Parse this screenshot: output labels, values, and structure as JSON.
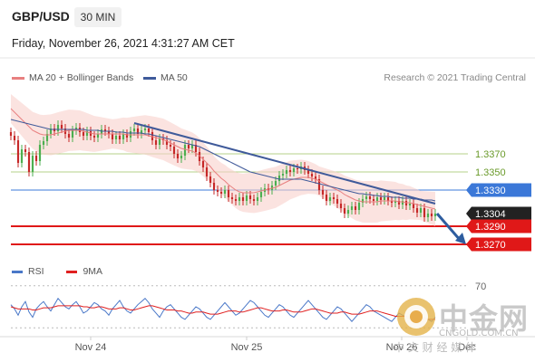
{
  "header": {
    "symbol": "GBP/USD",
    "timeframe": "30 MIN",
    "datetime": "Friday, November 26, 2021 4:31:27 AM CET"
  },
  "legend": {
    "ma20_bb": "MA 20 + Bollinger Bands",
    "ma50": "MA 50",
    "credit": "Research © 2021 Trading Central"
  },
  "rsi_legend": {
    "rsi": "RSI",
    "ma9": "9MA"
  },
  "colors": {
    "ma20": "#e88080",
    "ma50": "#3f5a9a",
    "support": "#e01818",
    "pivot_line": "#3b78d8",
    "resistance_line": "#b5d08a",
    "arrow": "#2e5d9f",
    "up_candle": "#4caf50",
    "down_candle": "#c62828",
    "rsi": "#4a78c8",
    "rsi_ma": "#e02020"
  },
  "chart_data": [
    {
      "type": "candlestick",
      "title": "GBP/USD",
      "x_tick_labels": [
        "Nov 24",
        "Nov 25",
        "Nov 26",
        "Dec"
      ],
      "ylim": [
        1.3258,
        1.3442
      ],
      "levels": [
        {
          "label": "1.3370",
          "value": 1.337,
          "kind": "resistance"
        },
        {
          "label": "1.3350",
          "value": 1.335,
          "kind": "resistance"
        },
        {
          "label": "1.3330",
          "value": 1.333,
          "kind": "pivot"
        },
        {
          "label": "1.3304",
          "value": 1.3304,
          "kind": "last"
        },
        {
          "label": "1.3290",
          "value": 1.329,
          "kind": "support"
        },
        {
          "label": "1.3270",
          "value": 1.327,
          "kind": "support"
        }
      ],
      "close": [
        1.339,
        1.3385,
        1.336,
        1.3375,
        1.3372,
        1.335,
        1.3368,
        1.3362,
        1.338,
        1.3384,
        1.3392,
        1.3398,
        1.3395,
        1.3402,
        1.3398,
        1.3392,
        1.3388,
        1.3396,
        1.3399,
        1.3394,
        1.339,
        1.3395,
        1.339,
        1.3388,
        1.3392,
        1.3397,
        1.3395,
        1.3392,
        1.3386,
        1.339,
        1.3386,
        1.3392,
        1.3388,
        1.3395,
        1.3398,
        1.3392,
        1.3396,
        1.3398,
        1.3394,
        1.3385,
        1.338,
        1.3387,
        1.3385,
        1.338,
        1.3378,
        1.337,
        1.3365,
        1.3368,
        1.338,
        1.3376,
        1.338,
        1.3372,
        1.3362,
        1.3355,
        1.3345,
        1.3338,
        1.333,
        1.3328,
        1.3326,
        1.333,
        1.3322,
        1.332,
        1.3318,
        1.3322,
        1.3318,
        1.3324,
        1.332,
        1.3318,
        1.3322,
        1.3328,
        1.3332,
        1.333,
        1.3335,
        1.334,
        1.3346,
        1.3348,
        1.3352,
        1.335,
        1.3354,
        1.3353,
        1.3356,
        1.3352,
        1.3348,
        1.3345,
        1.3342,
        1.333,
        1.3325,
        1.3318,
        1.3322,
        1.332,
        1.3315,
        1.331,
        1.3304,
        1.3308,
        1.3312,
        1.3308,
        1.3316,
        1.332,
        1.3323,
        1.332,
        1.3318,
        1.3322,
        1.3319,
        1.3322,
        1.3318,
        1.3316,
        1.3318,
        1.3314,
        1.3318,
        1.3313,
        1.3315,
        1.331,
        1.3305,
        1.331,
        1.33,
        1.3304,
        1.3301,
        1.3304
      ],
      "ma20": [
        1.342,
        1.3416,
        1.3412,
        1.3408,
        1.3404,
        1.34,
        1.3396,
        1.3394,
        1.3392,
        1.3391,
        1.3391,
        1.3391,
        1.3392,
        1.3393,
        1.3394,
        1.3395,
        1.3396,
        1.3396,
        1.3396,
        1.3396,
        1.3395,
        1.3394,
        1.3393,
        1.3392,
        1.3392,
        1.3392,
        1.3392,
        1.3392,
        1.3392,
        1.3392,
        1.3392,
        1.3392,
        1.3391,
        1.3391,
        1.3391,
        1.3391,
        1.3391,
        1.3391,
        1.339,
        1.3389,
        1.3388,
        1.3387,
        1.3386,
        1.3384,
        1.3382,
        1.338,
        1.3378,
        1.3376,
        1.3375,
        1.3374,
        1.3373,
        1.3371,
        1.3368,
        1.3364,
        1.336,
        1.3356,
        1.3351,
        1.3347,
        1.3343,
        1.334,
        1.3336,
        1.3333,
        1.333,
        1.3328,
        1.3327,
        1.3327,
        1.3327,
        1.3327,
        1.3328,
        1.3329,
        1.333,
        1.3331,
        1.3332,
        1.3333,
        1.3335,
        1.3337,
        1.3339,
        1.3341,
        1.3342,
        1.3343,
        1.3344,
        1.3344,
        1.3344,
        1.3343,
        1.3342,
        1.334,
        1.3338,
        1.3336,
        1.3334,
        1.3332,
        1.333,
        1.3328,
        1.3325,
        1.3323,
        1.3321,
        1.3319,
        1.3318,
        1.3317,
        1.3317,
        1.3317,
        1.3317,
        1.3317,
        1.3318,
        1.3318,
        1.3318,
        1.3318,
        1.3318,
        1.3317,
        1.3317,
        1.3316,
        1.3316,
        1.3315,
        1.3314,
        1.3313,
        1.3312,
        1.3311,
        1.331,
        1.3309
      ],
      "ma50": [
        1.3408,
        1.3407,
        1.3406,
        1.3405,
        1.3404,
        1.3403,
        1.3402,
        1.3401,
        1.34,
        1.3399,
        1.3398,
        1.3397,
        1.3397,
        1.3397,
        1.3397,
        1.3397,
        1.3397,
        1.3397,
        1.3397,
        1.3397,
        1.3397,
        1.3396,
        1.3396,
        1.3396,
        1.3396,
        1.3395,
        1.3395,
        1.3395,
        1.3395,
        1.3394,
        1.3394,
        1.3394,
        1.3393,
        1.3393,
        1.3393,
        1.3393,
        1.3393,
        1.3392,
        1.3392,
        1.3391,
        1.339,
        1.3389,
        1.3388,
        1.3387,
        1.3386,
        1.3385,
        1.3384,
        1.3383,
        1.3382,
        1.3381,
        1.338,
        1.3379,
        1.3378,
        1.3376,
        1.3374,
        1.3372,
        1.337,
        1.3368,
        1.3366,
        1.3364,
        1.3362,
        1.336,
        1.3358,
        1.3356,
        1.3354,
        1.3352,
        1.335,
        1.3349,
        1.3348,
        1.3347,
        1.3346,
        1.3345,
        1.3344,
        1.3343,
        1.3342,
        1.3342,
        1.3342,
        1.3342,
        1.3342,
        1.3342,
        1.3342,
        1.3341,
        1.334,
        1.3339,
        1.3338,
        1.3337,
        1.3336,
        1.3335,
        1.3334,
        1.3333,
        1.3332,
        1.3331,
        1.333,
        1.3329,
        1.3328,
        1.3327,
        1.3326,
        1.3326,
        1.3325,
        1.3325,
        1.3324,
        1.3324,
        1.3323,
        1.3323,
        1.3323,
        1.3322,
        1.3322,
        1.3322,
        1.3321,
        1.3321,
        1.3321,
        1.332,
        1.332,
        1.332,
        1.3319,
        1.3319,
        1.3319,
        1.3318
      ]
    },
    {
      "type": "line",
      "title": "RSI",
      "ylim": [
        25,
        75
      ],
      "levels": [
        {
          "label": "70",
          "value": 70
        }
      ],
      "series": [
        {
          "name": "RSI",
          "values": [
            52,
            48,
            42,
            50,
            55,
            45,
            40,
            48,
            52,
            55,
            50,
            46,
            52,
            58,
            54,
            50,
            48,
            52,
            55,
            50,
            44,
            46,
            50,
            54,
            52,
            48,
            46,
            42,
            48,
            52,
            56,
            50,
            46,
            44,
            48,
            52,
            55,
            58,
            54,
            48,
            44,
            40,
            46,
            50,
            52,
            48,
            44,
            40,
            38,
            42,
            46,
            50,
            48,
            44,
            40,
            38,
            42,
            46,
            50,
            54,
            50,
            46,
            42,
            44,
            48,
            52,
            56,
            54,
            50,
            46,
            42,
            40,
            44,
            48,
            52,
            50,
            46,
            42,
            40,
            44,
            48,
            52,
            56,
            52,
            48,
            44,
            40,
            38,
            42,
            46,
            50,
            48,
            44,
            40,
            36,
            40,
            44,
            48,
            52,
            50,
            46,
            44,
            42,
            40,
            38,
            36,
            40,
            44,
            42,
            40,
            38,
            36,
            34,
            38,
            40,
            38,
            36,
            40
          ]
        },
        {
          "name": "9MA",
          "values": [
            50,
            49,
            48,
            48,
            48,
            48,
            47,
            47,
            48,
            49,
            49,
            49,
            50,
            51,
            51,
            51,
            51,
            51,
            51,
            51,
            50,
            50,
            49,
            49,
            50,
            50,
            49,
            48,
            48,
            48,
            49,
            49,
            48,
            47,
            47,
            48,
            49,
            50,
            51,
            51,
            50,
            49,
            48,
            47,
            47,
            47,
            46,
            46,
            45,
            44,
            44,
            45,
            45,
            45,
            44,
            43,
            43,
            43,
            44,
            45,
            46,
            46,
            46,
            45,
            45,
            46,
            47,
            48,
            49,
            49,
            48,
            47,
            46,
            46,
            46,
            47,
            47,
            46,
            45,
            45,
            45,
            46,
            47,
            48,
            48,
            47,
            46,
            45,
            44,
            44,
            44,
            45,
            45,
            44,
            43,
            43,
            43,
            44,
            45,
            46,
            46,
            46,
            45,
            44,
            43,
            42,
            41,
            41,
            41,
            41,
            40,
            40,
            39,
            38,
            38,
            38,
            38,
            38
          ]
        }
      ]
    }
  ],
  "watermark_logo": {
    "main": "中金网",
    "url": "CNGOLD.COM.CN",
    "tagline": "中 文 财 经 媒 体"
  }
}
